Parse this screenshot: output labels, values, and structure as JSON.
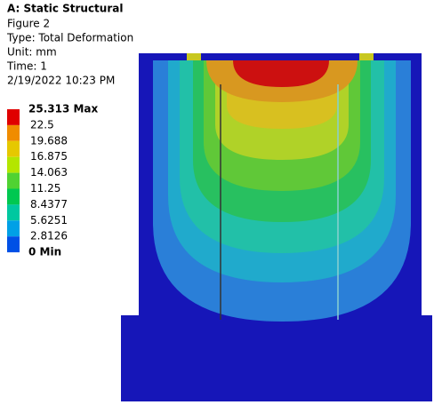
{
  "header": {
    "title": "A: Static Structural",
    "lines": [
      "Figure 2",
      "Type: Total Deformation",
      "Unit: mm",
      "Time: 1",
      "2/19/2022 10:23 PM"
    ]
  },
  "legend": {
    "labels": [
      "25.313 Max",
      "22.5",
      "19.688",
      "16.875",
      "14.063",
      "11.25",
      "8.4377",
      "5.6251",
      "2.8126",
      "0 Min"
    ],
    "colors": [
      "#e00000",
      "#f08c00",
      "#e6c800",
      "#b4e600",
      "#50d232",
      "#00c850",
      "#00c8a0",
      "#00a0e6",
      "#0050e6"
    ]
  }
}
